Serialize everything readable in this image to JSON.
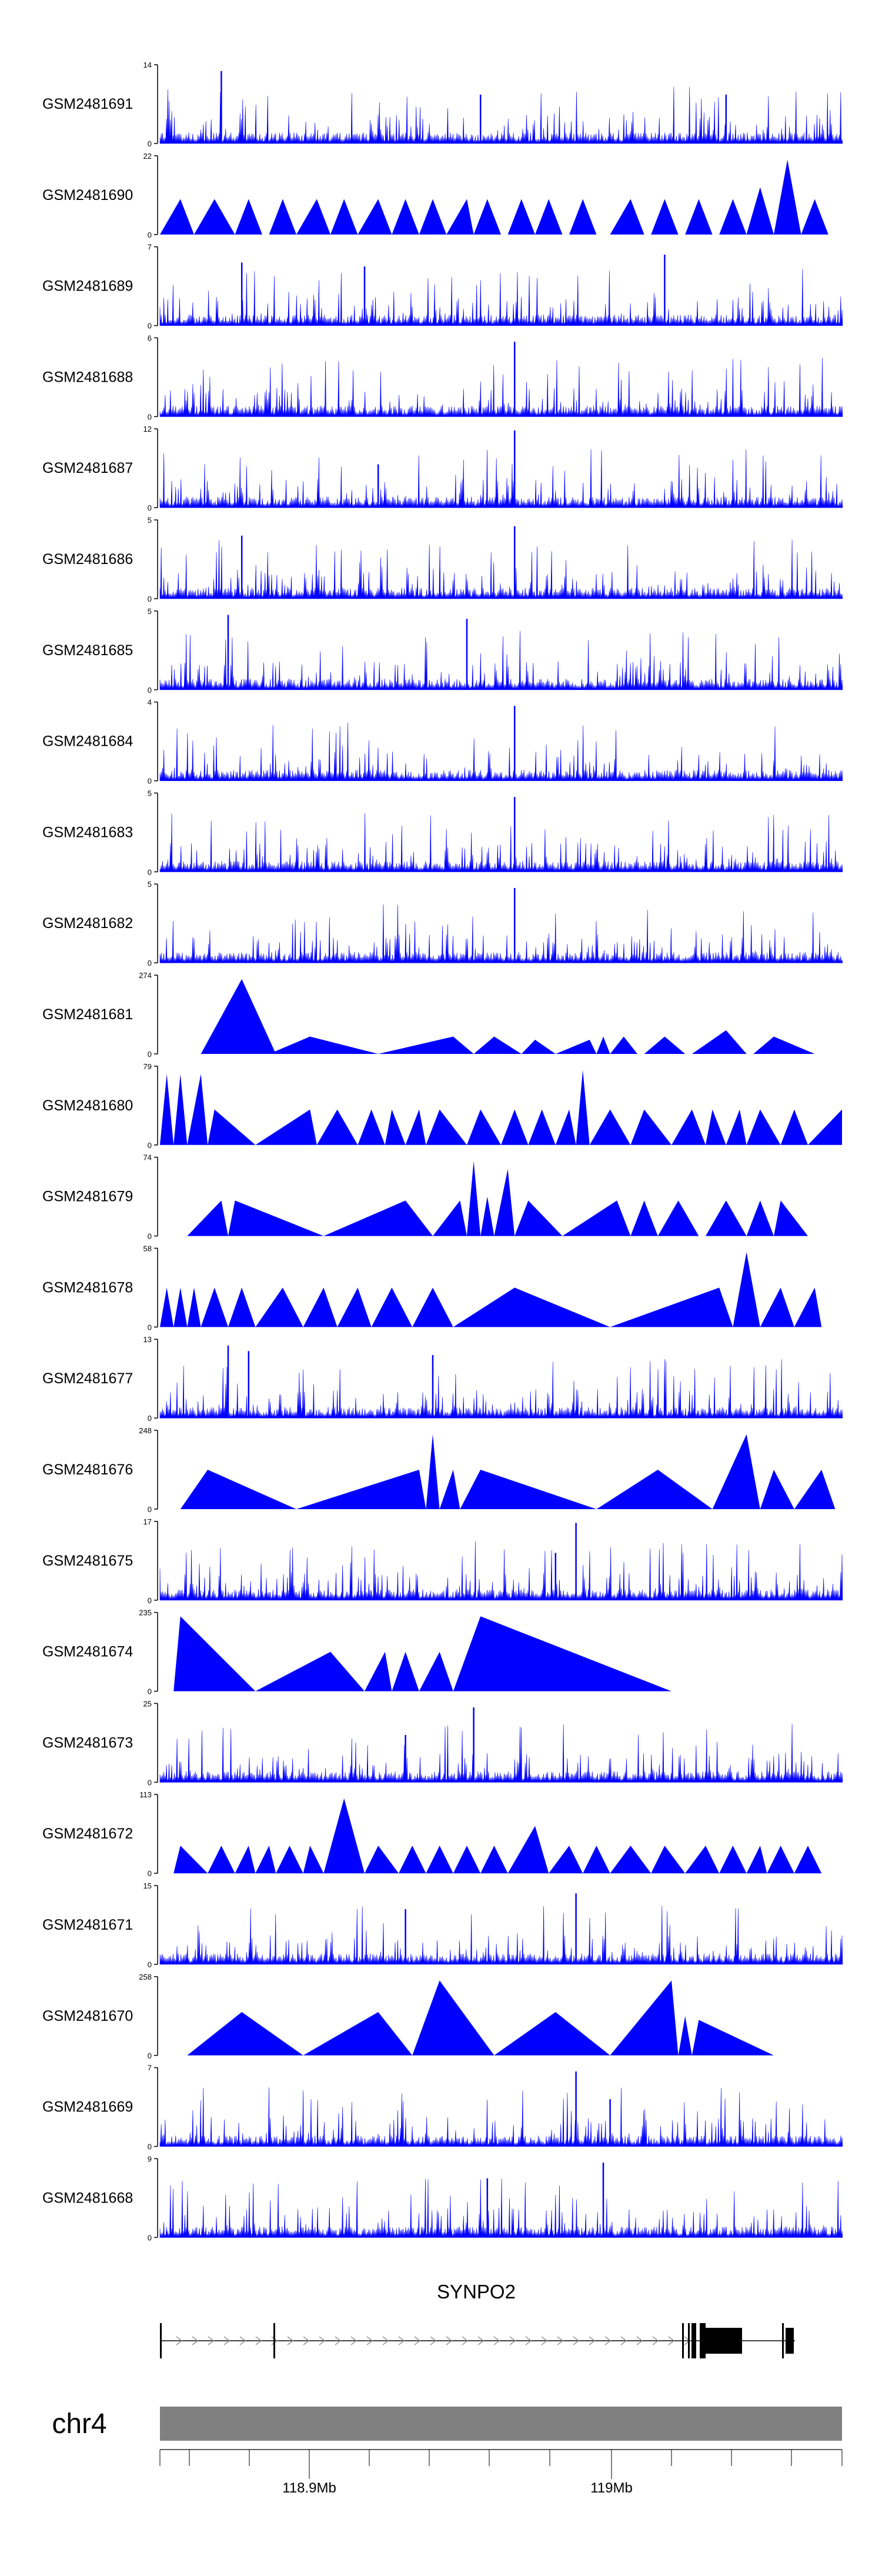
{
  "chart_data": {
    "type": "area",
    "colors": {
      "signal": "#0000ff",
      "axis": "#000000",
      "ideogram": "#808080",
      "gene": "#000000"
    },
    "tracks": [
      {
        "name": "GSM2481691",
        "ymax": 14,
        "style": "dense",
        "seed": 1,
        "spikes": [
          [
            0.09,
            0.92
          ],
          [
            0.47,
            0.62
          ],
          [
            0.83,
            0.62
          ]
        ]
      },
      {
        "name": "GSM2481690",
        "ymax": 22,
        "style": "tri",
        "seed": 2,
        "peaks": [
          [
            0.0,
            0.03,
            0.05,
            0.45
          ],
          [
            0.05,
            0.08,
            0.11,
            0.45
          ],
          [
            0.11,
            0.13,
            0.15,
            0.45
          ],
          [
            0.16,
            0.18,
            0.2,
            0.45
          ],
          [
            0.2,
            0.23,
            0.25,
            0.45
          ],
          [
            0.25,
            0.27,
            0.29,
            0.45
          ],
          [
            0.29,
            0.32,
            0.34,
            0.45
          ],
          [
            0.34,
            0.36,
            0.38,
            0.45
          ],
          [
            0.38,
            0.4,
            0.42,
            0.45
          ],
          [
            0.42,
            0.45,
            0.46,
            0.45
          ],
          [
            0.46,
            0.48,
            0.5,
            0.45
          ],
          [
            0.51,
            0.53,
            0.55,
            0.45
          ],
          [
            0.55,
            0.57,
            0.59,
            0.45
          ],
          [
            0.6,
            0.62,
            0.64,
            0.45
          ],
          [
            0.66,
            0.69,
            0.71,
            0.45
          ],
          [
            0.72,
            0.74,
            0.76,
            0.45
          ],
          [
            0.77,
            0.79,
            0.81,
            0.45
          ],
          [
            0.82,
            0.84,
            0.86,
            0.45
          ],
          [
            0.86,
            0.88,
            0.9,
            0.6
          ],
          [
            0.9,
            0.92,
            0.94,
            0.95
          ],
          [
            0.94,
            0.96,
            0.98,
            0.45
          ]
        ]
      },
      {
        "name": "GSM2481689",
        "ymax": 7,
        "style": "dense",
        "seed": 3,
        "spikes": [
          [
            0.12,
            0.8
          ],
          [
            0.3,
            0.75
          ],
          [
            0.74,
            0.9
          ]
        ]
      },
      {
        "name": "GSM2481688",
        "ymax": 6,
        "style": "dense",
        "seed": 4,
        "spikes": [
          [
            0.52,
            0.95
          ]
        ]
      },
      {
        "name": "GSM2481687",
        "ymax": 12,
        "style": "dense",
        "seed": 5,
        "spikes": [
          [
            0.52,
            0.98
          ],
          [
            0.32,
            0.55
          ]
        ]
      },
      {
        "name": "GSM2481686",
        "ymax": 5,
        "style": "dense",
        "seed": 6,
        "spikes": [
          [
            0.52,
            0.92
          ],
          [
            0.12,
            0.8
          ]
        ]
      },
      {
        "name": "GSM2481685",
        "ymax": 5,
        "style": "dense",
        "seed": 7,
        "spikes": [
          [
            0.1,
            0.95
          ],
          [
            0.45,
            0.9
          ]
        ]
      },
      {
        "name": "GSM2481684",
        "ymax": 4,
        "style": "dense",
        "seed": 8,
        "spikes": [
          [
            0.52,
            0.95
          ]
        ]
      },
      {
        "name": "GSM2481683",
        "ymax": 5,
        "style": "dense",
        "seed": 9,
        "spikes": [
          [
            0.52,
            0.95
          ]
        ]
      },
      {
        "name": "GSM2481682",
        "ymax": 5,
        "style": "dense",
        "seed": 10,
        "spikes": [
          [
            0.52,
            0.95
          ]
        ]
      },
      {
        "name": "GSM2481681",
        "ymax": 274,
        "style": "tri",
        "seed": 11,
        "peaks": [
          [
            0.06,
            0.12,
            0.17,
            0.95
          ],
          [
            0.16,
            0.22,
            0.32,
            0.22
          ],
          [
            0.32,
            0.43,
            0.46,
            0.22
          ],
          [
            0.46,
            0.49,
            0.53,
            0.22
          ],
          [
            0.53,
            0.55,
            0.58,
            0.18
          ],
          [
            0.58,
            0.63,
            0.64,
            0.18
          ],
          [
            0.64,
            0.65,
            0.66,
            0.22
          ],
          [
            0.66,
            0.68,
            0.7,
            0.22
          ],
          [
            0.71,
            0.74,
            0.77,
            0.22
          ],
          [
            0.78,
            0.83,
            0.86,
            0.3
          ],
          [
            0.87,
            0.9,
            0.96,
            0.22
          ]
        ]
      },
      {
        "name": "GSM2481680",
        "ymax": 79,
        "style": "tri",
        "seed": 12,
        "peaks": [
          [
            0.0,
            0.01,
            0.02,
            0.9
          ],
          [
            0.02,
            0.03,
            0.04,
            0.9
          ],
          [
            0.04,
            0.06,
            0.07,
            0.9
          ],
          [
            0.07,
            0.08,
            0.14,
            0.45
          ],
          [
            0.14,
            0.22,
            0.23,
            0.45
          ],
          [
            0.23,
            0.26,
            0.29,
            0.45
          ],
          [
            0.29,
            0.31,
            0.33,
            0.45
          ],
          [
            0.33,
            0.34,
            0.36,
            0.45
          ],
          [
            0.36,
            0.38,
            0.39,
            0.45
          ],
          [
            0.39,
            0.41,
            0.45,
            0.45
          ],
          [
            0.45,
            0.47,
            0.5,
            0.45
          ],
          [
            0.5,
            0.52,
            0.54,
            0.45
          ],
          [
            0.54,
            0.56,
            0.58,
            0.45
          ],
          [
            0.58,
            0.6,
            0.61,
            0.45
          ],
          [
            0.61,
            0.62,
            0.63,
            0.95
          ],
          [
            0.63,
            0.66,
            0.69,
            0.45
          ],
          [
            0.69,
            0.71,
            0.75,
            0.45
          ],
          [
            0.75,
            0.78,
            0.8,
            0.45
          ],
          [
            0.8,
            0.81,
            0.83,
            0.45
          ],
          [
            0.83,
            0.85,
            0.86,
            0.45
          ],
          [
            0.86,
            0.88,
            0.91,
            0.45
          ],
          [
            0.91,
            0.93,
            0.95,
            0.45
          ],
          [
            0.95,
            1.0,
            1.0,
            0.45
          ]
        ]
      },
      {
        "name": "GSM2481679",
        "ymax": 74,
        "style": "tri",
        "seed": 13,
        "peaks": [
          [
            0.04,
            0.09,
            0.1,
            0.45
          ],
          [
            0.1,
            0.11,
            0.24,
            0.45
          ],
          [
            0.24,
            0.36,
            0.4,
            0.45
          ],
          [
            0.4,
            0.44,
            0.45,
            0.45
          ],
          [
            0.45,
            0.46,
            0.47,
            0.95
          ],
          [
            0.47,
            0.48,
            0.49,
            0.5
          ],
          [
            0.49,
            0.51,
            0.52,
            0.85
          ],
          [
            0.52,
            0.54,
            0.59,
            0.45
          ],
          [
            0.59,
            0.67,
            0.69,
            0.45
          ],
          [
            0.69,
            0.71,
            0.73,
            0.45
          ],
          [
            0.73,
            0.76,
            0.79,
            0.45
          ],
          [
            0.8,
            0.83,
            0.86,
            0.45
          ],
          [
            0.86,
            0.88,
            0.9,
            0.45
          ],
          [
            0.9,
            0.91,
            0.95,
            0.45
          ]
        ]
      },
      {
        "name": "GSM2481678",
        "ymax": 58,
        "style": "tri",
        "seed": 14,
        "peaks": [
          [
            0.0,
            0.01,
            0.02,
            0.5
          ],
          [
            0.02,
            0.03,
            0.04,
            0.5
          ],
          [
            0.04,
            0.05,
            0.06,
            0.5
          ],
          [
            0.06,
            0.08,
            0.1,
            0.5
          ],
          [
            0.1,
            0.12,
            0.14,
            0.5
          ],
          [
            0.14,
            0.18,
            0.21,
            0.5
          ],
          [
            0.21,
            0.24,
            0.26,
            0.5
          ],
          [
            0.26,
            0.29,
            0.31,
            0.5
          ],
          [
            0.31,
            0.34,
            0.37,
            0.5
          ],
          [
            0.37,
            0.4,
            0.43,
            0.5
          ],
          [
            0.43,
            0.52,
            0.66,
            0.5
          ],
          [
            0.66,
            0.82,
            0.84,
            0.5
          ],
          [
            0.84,
            0.86,
            0.88,
            0.95
          ],
          [
            0.88,
            0.91,
            0.93,
            0.5
          ],
          [
            0.93,
            0.96,
            0.97,
            0.5
          ]
        ]
      },
      {
        "name": "GSM2481677",
        "ymax": 13,
        "style": "dense",
        "seed": 15,
        "spikes": [
          [
            0.1,
            0.92
          ],
          [
            0.13,
            0.85
          ],
          [
            0.4,
            0.8
          ]
        ]
      },
      {
        "name": "GSM2481676",
        "ymax": 248,
        "style": "tri",
        "seed": 16,
        "peaks": [
          [
            0.03,
            0.07,
            0.2,
            0.5
          ],
          [
            0.2,
            0.38,
            0.39,
            0.5
          ],
          [
            0.39,
            0.4,
            0.41,
            0.95
          ],
          [
            0.41,
            0.43,
            0.44,
            0.5
          ],
          [
            0.44,
            0.47,
            0.64,
            0.5
          ],
          [
            0.64,
            0.73,
            0.81,
            0.5
          ],
          [
            0.81,
            0.86,
            0.88,
            0.95
          ],
          [
            0.88,
            0.9,
            0.93,
            0.5
          ],
          [
            0.93,
            0.97,
            0.99,
            0.5
          ]
        ]
      },
      {
        "name": "GSM2481675",
        "ymax": 17,
        "style": "dense",
        "seed": 17,
        "spikes": [
          [
            0.61,
            0.98
          ],
          [
            0.58,
            0.6
          ]
        ]
      },
      {
        "name": "GSM2481674",
        "ymax": 235,
        "style": "tri",
        "seed": 18,
        "peaks": [
          [
            0.02,
            0.03,
            0.14,
            0.95
          ],
          [
            0.14,
            0.25,
            0.3,
            0.5
          ],
          [
            0.3,
            0.33,
            0.34,
            0.5
          ],
          [
            0.34,
            0.36,
            0.38,
            0.5
          ],
          [
            0.38,
            0.41,
            0.43,
            0.5
          ],
          [
            0.43,
            0.47,
            0.75,
            0.95
          ]
        ]
      },
      {
        "name": "GSM2481673",
        "ymax": 25,
        "style": "dense",
        "seed": 19,
        "spikes": [
          [
            0.46,
            0.95
          ],
          [
            0.36,
            0.6
          ]
        ]
      },
      {
        "name": "GSM2481672",
        "ymax": 113,
        "style": "tri",
        "seed": 20,
        "peaks": [
          [
            0.02,
            0.03,
            0.07,
            0.35
          ],
          [
            0.07,
            0.09,
            0.11,
            0.35
          ],
          [
            0.11,
            0.13,
            0.14,
            0.35
          ],
          [
            0.14,
            0.16,
            0.17,
            0.35
          ],
          [
            0.17,
            0.19,
            0.21,
            0.35
          ],
          [
            0.21,
            0.22,
            0.24,
            0.35
          ],
          [
            0.24,
            0.27,
            0.3,
            0.95
          ],
          [
            0.3,
            0.32,
            0.35,
            0.35
          ],
          [
            0.35,
            0.37,
            0.39,
            0.35
          ],
          [
            0.39,
            0.41,
            0.43,
            0.35
          ],
          [
            0.43,
            0.45,
            0.47,
            0.35
          ],
          [
            0.47,
            0.49,
            0.51,
            0.35
          ],
          [
            0.51,
            0.55,
            0.57,
            0.6
          ],
          [
            0.57,
            0.6,
            0.62,
            0.35
          ],
          [
            0.62,
            0.64,
            0.66,
            0.35
          ],
          [
            0.66,
            0.69,
            0.72,
            0.35
          ],
          [
            0.72,
            0.74,
            0.77,
            0.35
          ],
          [
            0.77,
            0.8,
            0.82,
            0.35
          ],
          [
            0.82,
            0.84,
            0.86,
            0.35
          ],
          [
            0.86,
            0.88,
            0.89,
            0.35
          ],
          [
            0.89,
            0.91,
            0.93,
            0.35
          ],
          [
            0.93,
            0.95,
            0.97,
            0.35
          ]
        ]
      },
      {
        "name": "GSM2481671",
        "ymax": 15,
        "style": "dense",
        "seed": 21,
        "spikes": [
          [
            0.61,
            0.9
          ],
          [
            0.36,
            0.7
          ]
        ]
      },
      {
        "name": "GSM2481670",
        "ymax": 258,
        "style": "tri",
        "seed": 22,
        "peaks": [
          [
            0.04,
            0.12,
            0.21,
            0.55
          ],
          [
            0.21,
            0.32,
            0.37,
            0.55
          ],
          [
            0.37,
            0.41,
            0.49,
            0.95
          ],
          [
            0.49,
            0.58,
            0.66,
            0.55
          ],
          [
            0.66,
            0.75,
            0.76,
            0.95
          ],
          [
            0.76,
            0.77,
            0.78,
            0.5
          ],
          [
            0.78,
            0.79,
            0.9,
            0.45
          ]
        ]
      },
      {
        "name": "GSM2481669",
        "ymax": 7,
        "style": "dense",
        "seed": 23,
        "spikes": [
          [
            0.61,
            0.95
          ],
          [
            0.66,
            0.6
          ]
        ]
      },
      {
        "name": "GSM2481668",
        "ymax": 9,
        "style": "dense",
        "seed": 24,
        "spikes": [
          [
            0.65,
            0.95
          ],
          [
            0.48,
            0.75
          ]
        ]
      }
    ],
    "gene": {
      "name": "SYNPO2",
      "chrom": "chr4"
    },
    "axis": {
      "ticks": [
        "118.9Mb",
        "119Mb"
      ]
    }
  }
}
